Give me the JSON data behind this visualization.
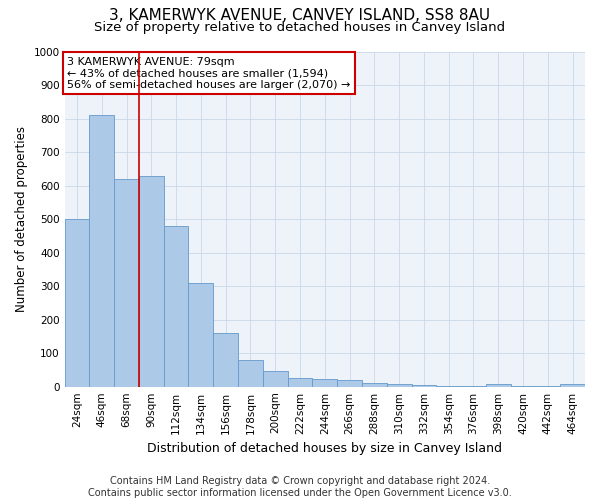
{
  "title": "3, KAMERWYK AVENUE, CANVEY ISLAND, SS8 8AU",
  "subtitle": "Size of property relative to detached houses in Canvey Island",
  "xlabel": "Distribution of detached houses by size in Canvey Island",
  "ylabel": "Number of detached properties",
  "footer_line1": "Contains HM Land Registry data © Crown copyright and database right 2024.",
  "footer_line2": "Contains public sector information licensed under the Open Government Licence v3.0.",
  "categories": [
    "24sqm",
    "46sqm",
    "68sqm",
    "90sqm",
    "112sqm",
    "134sqm",
    "156sqm",
    "178sqm",
    "200sqm",
    "222sqm",
    "244sqm",
    "266sqm",
    "288sqm",
    "310sqm",
    "332sqm",
    "354sqm",
    "376sqm",
    "398sqm",
    "420sqm",
    "442sqm",
    "464sqm"
  ],
  "values": [
    500,
    810,
    620,
    630,
    480,
    310,
    160,
    80,
    47,
    27,
    22,
    20,
    10,
    8,
    5,
    3,
    2,
    7,
    1,
    1,
    8
  ],
  "bar_color": "#adc9e8",
  "bar_edge_color": "#6699cc",
  "background_color": "#ffffff",
  "plot_bg_color": "#eef3f9",
  "grid_color": "#c8d8ea",
  "annotation_text": "3 KAMERWYK AVENUE: 79sqm\n← 43% of detached houses are smaller (1,594)\n56% of semi-detached houses are larger (2,070) →",
  "annotation_box_color": "#ffffff",
  "annotation_box_edge_color": "#cc0000",
  "vline_color": "#cc0000",
  "vline_position": 2.5,
  "ylim": [
    0,
    1000
  ],
  "yticks": [
    0,
    100,
    200,
    300,
    400,
    500,
    600,
    700,
    800,
    900,
    1000
  ],
  "title_fontsize": 11,
  "subtitle_fontsize": 9.5,
  "xlabel_fontsize": 9,
  "ylabel_fontsize": 8.5,
  "tick_fontsize": 7.5,
  "annotation_fontsize": 8,
  "footer_fontsize": 7
}
